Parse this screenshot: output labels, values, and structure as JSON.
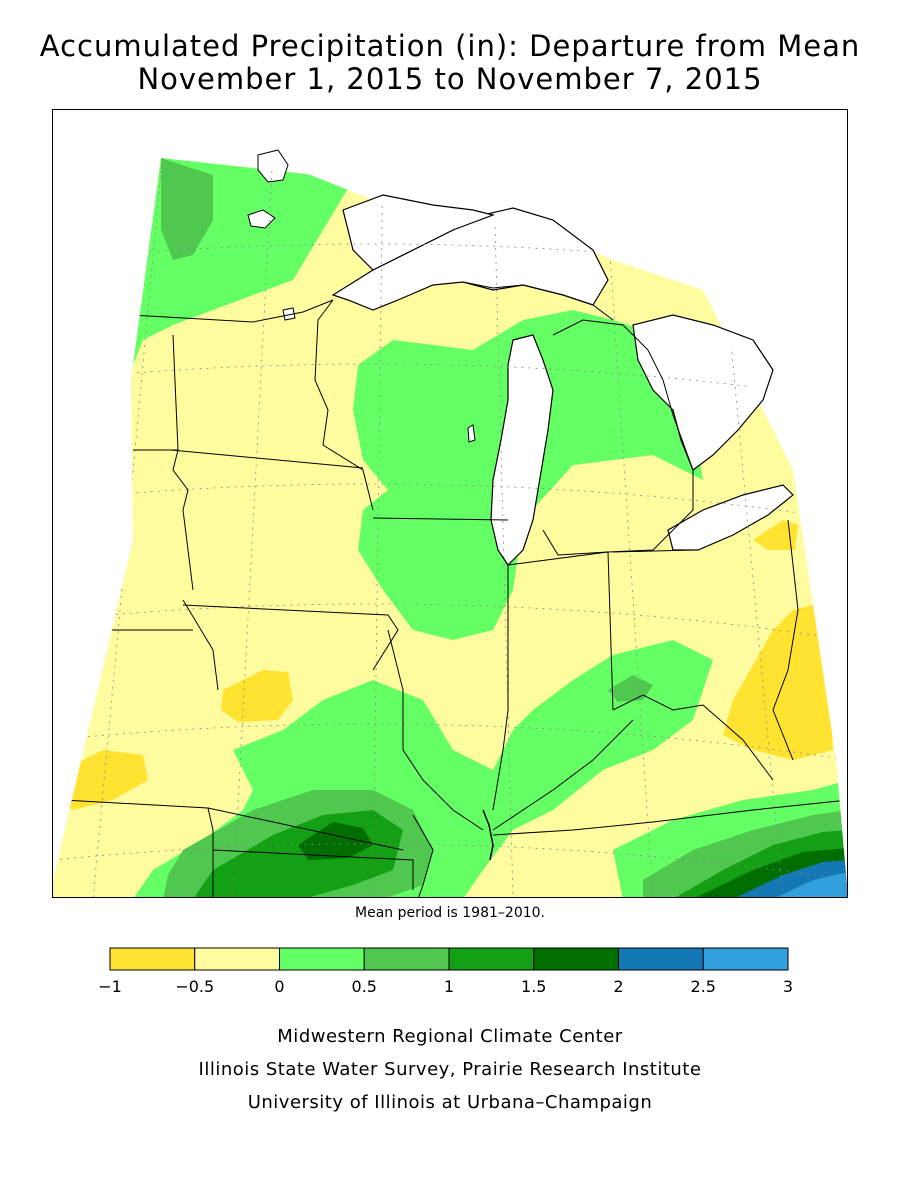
{
  "title": {
    "line1": "Accumulated Precipitation (in): Departure from Mean",
    "line2": "November 1, 2015 to November 7, 2015"
  },
  "mean_note": "Mean period is 1981–2010.",
  "legend": {
    "ticks": [
      "−1",
      "−0.5",
      "0",
      "0.5",
      "1",
      "1.5",
      "2",
      "2.5",
      "3"
    ],
    "colors": [
      "#ffe330",
      "#fffc9f",
      "#64ff64",
      "#50c850",
      "#14a014",
      "#006e00",
      "#1478b4",
      "#32a0dc"
    ]
  },
  "credits": {
    "line1": "Midwestern Regional Climate Center",
    "line2": "Illinois State Water Survey, Prairie Research Institute",
    "line3": "University of Illinois at Urbana–Champaign"
  },
  "map_colors": {
    "water": "#ffffff",
    "outside": "#ffffff",
    "lines": "#000000",
    "grid": "#888888"
  }
}
